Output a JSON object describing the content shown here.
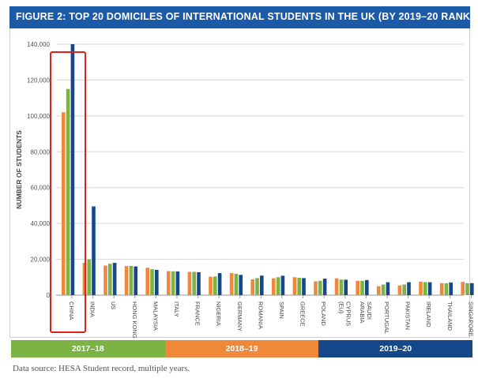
{
  "title": "FIGURE 2: TOP 20 DOMICILES OF INTERNATIONAL STUDENTS IN THE UK (BY 2019–20 RANK)",
  "source": "Data source: HESA Student record, multiple years.",
  "colors": {
    "s2017": "#7cb342",
    "s2018": "#f0883a",
    "s2019": "#14488a",
    "title_bg": "#1b5aa6",
    "highlight": "#e0201b"
  },
  "legend": [
    {
      "label": "2017–18",
      "color": "#7cb342"
    },
    {
      "label": "2018–19",
      "color": "#f0883a"
    },
    {
      "label": "2019–20",
      "color": "#14488a"
    }
  ],
  "chart_data": {
    "type": "bar",
    "title": "FIGURE 2: TOP 20 DOMICILES OF INTERNATIONAL STUDENTS IN THE UK (BY 2019–20 RANK)",
    "ylabel": "NUMBER OF STUDENTS",
    "xlabel": "",
    "ylim": [
      0,
      140000
    ],
    "yticks": [
      0,
      20000,
      40000,
      60000,
      80000,
      100000,
      120000,
      140000
    ],
    "ytick_labels": [
      "0",
      "20,000",
      "40,000",
      "60,000",
      "80,000",
      "100,000",
      "120,000",
      "140,000"
    ],
    "grid": true,
    "legend_position": "bottom",
    "categories": [
      "CHINA",
      "INDIA",
      "US",
      "HONG KONG",
      "MALAYSIA",
      "ITALY",
      "FRANCE",
      "NIGERIA",
      "GERMANY",
      "ROMANIA",
      "SPAIN",
      "GREECE",
      "POLAND",
      "CYPRUS (EU)",
      "SAUDI ARABIA",
      "PORTUGAL",
      "PAKISTAN",
      "IRELAND",
      "THAILAND",
      "SINGAPORE"
    ],
    "series": [
      {
        "name": "2018–19",
        "color": "#f0883a",
        "values": [
          102000,
          18000,
          16500,
          16200,
          15300,
          13400,
          13000,
          10300,
          12300,
          8800,
          9400,
          10000,
          7700,
          9400,
          8000,
          5000,
          5400,
          7500,
          6700,
          7400
        ]
      },
      {
        "name": "2017–18",
        "color": "#7cb342",
        "values": [
          115000,
          20000,
          17500,
          16300,
          14500,
          13300,
          13000,
          10400,
          11900,
          9500,
          10000,
          9700,
          8000,
          8700,
          8000,
          5900,
          5900,
          7300,
          6600,
          6700
        ]
      },
      {
        "name": "2019–20",
        "color": "#14488a",
        "values": [
          141000,
          49500,
          18000,
          16000,
          14100,
          13200,
          12800,
          12300,
          11300,
          10900,
          10800,
          9500,
          9200,
          8600,
          8400,
          7200,
          7200,
          7200,
          7000,
          6700
        ]
      }
    ],
    "highlight_category": "CHINA"
  }
}
